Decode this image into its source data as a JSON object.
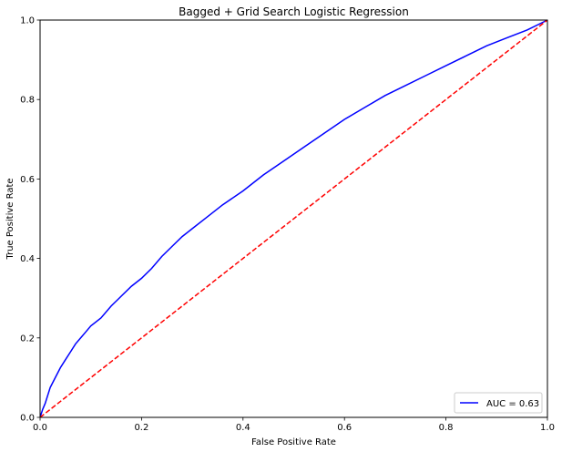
{
  "chart_data": {
    "type": "line",
    "title": "Bagged + Grid Search Logistic Regression",
    "xlabel": "False Positive Rate",
    "ylabel": "True Positive Rate",
    "xlim": [
      0,
      1
    ],
    "ylim": [
      0,
      1
    ],
    "xticks": [
      "0.0",
      "0.2",
      "0.4",
      "0.6",
      "0.8",
      "1.0"
    ],
    "yticks": [
      "0.0",
      "0.2",
      "0.4",
      "0.6",
      "0.8",
      "1.0"
    ],
    "grid": false,
    "legend_position": "lower-right",
    "series": [
      {
        "name": "AUC = 0.63",
        "color": "#0000ff",
        "style": "solid",
        "x": [
          0.0,
          0.005,
          0.01,
          0.02,
          0.03,
          0.04,
          0.05,
          0.06,
          0.07,
          0.08,
          0.09,
          0.1,
          0.12,
          0.14,
          0.16,
          0.18,
          0.2,
          0.22,
          0.24,
          0.26,
          0.28,
          0.3,
          0.33,
          0.36,
          0.4,
          0.44,
          0.48,
          0.52,
          0.56,
          0.6,
          0.64,
          0.68,
          0.72,
          0.76,
          0.8,
          0.84,
          0.88,
          0.92,
          0.96,
          1.0
        ],
        "y": [
          0.0,
          0.02,
          0.035,
          0.075,
          0.1,
          0.125,
          0.145,
          0.165,
          0.185,
          0.2,
          0.215,
          0.23,
          0.25,
          0.28,
          0.305,
          0.33,
          0.35,
          0.375,
          0.405,
          0.43,
          0.455,
          0.475,
          0.505,
          0.535,
          0.57,
          0.61,
          0.645,
          0.68,
          0.715,
          0.75,
          0.78,
          0.81,
          0.835,
          0.86,
          0.885,
          0.91,
          0.935,
          0.955,
          0.975,
          1.0
        ]
      },
      {
        "name": "",
        "color": "#ff0000",
        "style": "dashed",
        "x": [
          0,
          1
        ],
        "y": [
          0,
          1
        ]
      }
    ]
  }
}
